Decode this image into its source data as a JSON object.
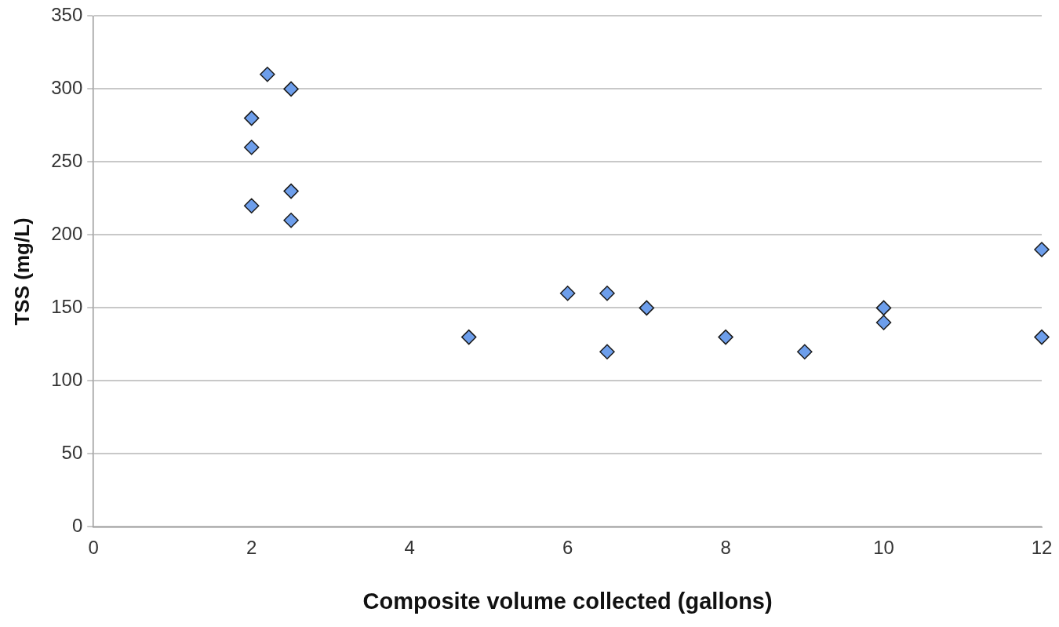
{
  "chart_data": {
    "type": "scatter",
    "xlabel": "Composite volume collected (gallons)",
    "ylabel": "TSS (mg/L)",
    "x": [
      2,
      2,
      2,
      2.2,
      2.5,
      2.5,
      2.5,
      4.75,
      6,
      6.5,
      6.5,
      7,
      8,
      9,
      10,
      10,
      12,
      12
    ],
    "series": [
      {
        "color": "#6d9eeb",
        "values": [
          280,
          260,
          220,
          310,
          300,
          230,
          210,
          130,
          160,
          160,
          120,
          150,
          130,
          120,
          150,
          140,
          190,
          130
        ]
      }
    ],
    "xlim": [
      0,
      12
    ],
    "xticks": [
      0,
      2,
      4,
      6,
      8,
      10,
      12
    ],
    "ylim": [
      0,
      350
    ],
    "yticks": [
      0,
      50,
      100,
      150,
      200,
      250,
      300,
      350
    ],
    "grid": "y",
    "marker": "diamond"
  }
}
